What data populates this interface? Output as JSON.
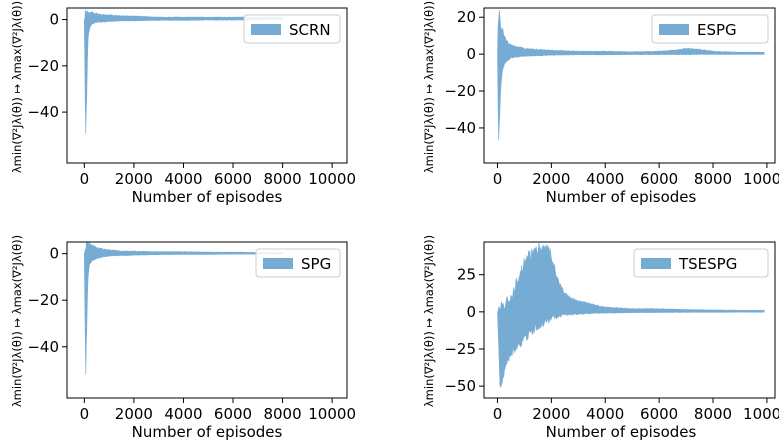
{
  "colors": {
    "fill": "#76acd3",
    "frame": "#000000",
    "legend_border": "#cccccc"
  },
  "chart_data": [
    {
      "type": "area",
      "series": [
        {
          "name": "SCRN"
        }
      ],
      "legend_position": "top-right",
      "xlabel": "Number of episodes",
      "ylabel": "λmin(∇²Jλ(θ)) ↦ λmax(∇²Jλ(θ))",
      "xlim": [
        -700,
        10600
      ],
      "ylim": [
        -62,
        5
      ],
      "xticks": [
        0,
        2000,
        4000,
        6000,
        8000,
        10000
      ],
      "xtick_labels": [
        "0",
        "2000",
        "4000",
        "6000",
        "8000",
        "10000"
      ],
      "yticks": [
        0,
        -20,
        -40
      ],
      "ytick_labels": [
        "0",
        "−20",
        "−40"
      ],
      "x_end": 8000,
      "band": {
        "x": [
          0,
          50,
          100,
          150,
          200,
          300,
          400,
          500,
          700,
          1000,
          1500,
          2000,
          3000,
          4000,
          5000,
          6000,
          7000,
          8000
        ],
        "upper": [
          0,
          1,
          3,
          3.5,
          3,
          3,
          2.5,
          2.5,
          2,
          2,
          1.5,
          1.5,
          1,
          1,
          1,
          1,
          1,
          1
        ],
        "lower": [
          0,
          -52,
          -30,
          -8,
          -4,
          -2,
          -1.5,
          -1,
          -1,
          -0.8,
          -0.5,
          -0.5,
          -0.3,
          -0.3,
          -0.2,
          -0.2,
          -0.1,
          -0.1
        ]
      }
    },
    {
      "type": "area",
      "series": [
        {
          "name": "ESPG"
        }
      ],
      "legend_position": "top-right",
      "xlabel": "Number of episodes",
      "ylabel": "λmin(∇²Jλ(θ)) ↦ λmax(∇²Jλ(θ))",
      "xlim": [
        -500,
        10300
      ],
      "ylim": [
        -59,
        25
      ],
      "xticks": [
        0,
        2000,
        4000,
        6000,
        8000,
        10000
      ],
      "xtick_labels": [
        "0",
        "2000",
        "4000",
        "6000",
        "8000",
        "10000"
      ],
      "yticks": [
        20,
        0,
        -20,
        -40
      ],
      "ytick_labels": [
        "20",
        "0",
        "−20",
        "−40"
      ],
      "x_end": 9900,
      "band": {
        "x": [
          0,
          40,
          100,
          150,
          200,
          300,
          400,
          500,
          700,
          1000,
          1500,
          2000,
          3000,
          4000,
          5000,
          6000,
          6500,
          7000,
          7500,
          8000,
          9000,
          9900
        ],
        "upper": [
          0,
          22,
          18,
          14,
          12,
          8,
          6,
          5,
          4,
          3,
          2.5,
          2,
          1.5,
          1.5,
          1.2,
          1.5,
          2,
          3,
          2.5,
          1.5,
          1,
          1
        ],
        "lower": [
          0,
          -52,
          -25,
          -12,
          -8,
          -4,
          -3,
          -2,
          -1.5,
          -1,
          -0.8,
          -0.5,
          -0.3,
          -0.3,
          -0.2,
          -0.2,
          -0.2,
          -0.2,
          -0.1,
          -0.1,
          -0.1,
          -0.1
        ]
      }
    },
    {
      "type": "area",
      "series": [
        {
          "name": "SPG"
        }
      ],
      "legend_position": "top-right",
      "xlabel": "Number of episodes",
      "ylabel": "λmin(∇²Jλ(θ)) ↦ λmax(∇²Jλ(θ))",
      "xlim": [
        -700,
        10600
      ],
      "ylim": [
        -62,
        5
      ],
      "xticks": [
        0,
        2000,
        4000,
        6000,
        8000,
        10000
      ],
      "xtick_labels": [
        "0",
        "2000",
        "4000",
        "6000",
        "8000",
        "10000"
      ],
      "yticks": [
        0,
        -20,
        -40
      ],
      "ytick_labels": [
        "0",
        "−20",
        "−40"
      ],
      "x_end": 8000,
      "band": {
        "x": [
          0,
          50,
          100,
          150,
          200,
          300,
          400,
          500,
          700,
          1000,
          1500,
          2000,
          3000,
          4000,
          5000,
          6000,
          7000,
          8000
        ],
        "upper": [
          0,
          1,
          6,
          5,
          4,
          3.5,
          3,
          2.5,
          2,
          1.5,
          1,
          1,
          0.8,
          0.8,
          0.6,
          0.6,
          0.5,
          0.5
        ],
        "lower": [
          0,
          -52,
          -30,
          -10,
          -5,
          -3,
          -2.5,
          -2,
          -1.5,
          -1,
          -0.8,
          -0.6,
          -0.4,
          -0.3,
          -0.3,
          -0.2,
          -0.2,
          -0.2
        ]
      }
    },
    {
      "type": "area",
      "series": [
        {
          "name": "TSESPG"
        }
      ],
      "legend_position": "top-right",
      "xlabel": "Number of episodes",
      "ylabel": "λmin(∇²Jλ(θ)) ↦ λmax(∇²Jλ(θ))",
      "xlim": [
        -500,
        10300
      ],
      "ylim": [
        -58,
        47
      ],
      "xticks": [
        0,
        2000,
        4000,
        6000,
        8000,
        10000
      ],
      "xtick_labels": [
        "0",
        "2000",
        "4000",
        "6000",
        "8000",
        "10000"
      ],
      "yticks": [
        25,
        0,
        -25,
        -50
      ],
      "ytick_labels": [
        "25",
        "0",
        "−25",
        "−50"
      ],
      "x_end": 9900,
      "band": {
        "x": [
          0,
          100,
          200,
          300,
          500,
          700,
          900,
          1100,
          1300,
          1500,
          1700,
          1900,
          2000,
          2100,
          2300,
          2500,
          2700,
          3000,
          3500,
          4000,
          4500,
          5000,
          6000,
          7000,
          8000,
          9000,
          9900
        ],
        "upper": [
          0,
          2,
          5,
          5,
          10,
          18,
          28,
          35,
          40,
          42,
          43,
          41,
          38,
          30,
          18,
          12,
          9,
          7,
          5,
          3,
          2.5,
          2,
          2,
          1.5,
          1.2,
          1,
          1
        ],
        "lower": [
          0,
          -52,
          -45,
          -35,
          -28,
          -24,
          -20,
          -16,
          -12,
          -9,
          -7,
          -5,
          -4,
          -3,
          -2.5,
          -2,
          -1.8,
          -1.5,
          -1,
          -0.8,
          -0.6,
          -0.5,
          -0.4,
          -0.3,
          -0.3,
          -0.2,
          -0.2
        ]
      }
    }
  ]
}
